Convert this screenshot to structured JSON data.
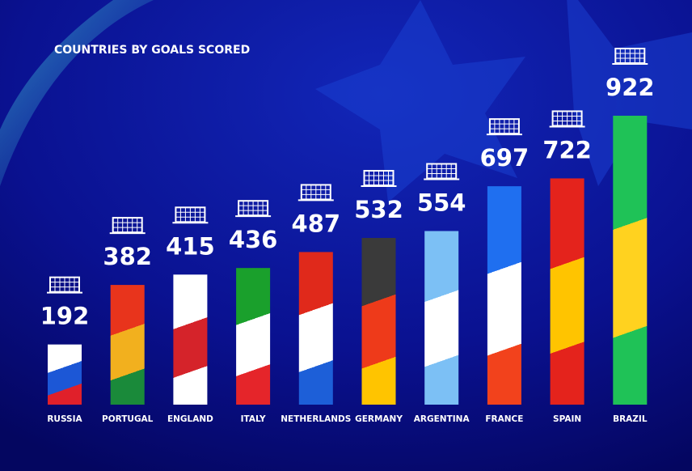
{
  "chart_data": {
    "type": "bar",
    "title": "COUNTRIES BY GOALS SCORED",
    "categories": [
      "RUSSIA",
      "PORTUGAL",
      "ENGLAND",
      "ITALY",
      "NETHERLANDS",
      "GERMANY",
      "ARGENTINA",
      "FRANCE",
      "SPAIN",
      "BRAZIL"
    ],
    "values": [
      192,
      382,
      415,
      436,
      487,
      532,
      554,
      697,
      722,
      922
    ],
    "colors": [
      [
        "#ffffff",
        "#1c57d6",
        "#e0202a"
      ],
      [
        "#e8341c",
        "#f2b01e",
        "#1a8a3a"
      ],
      [
        "#ffffff",
        "#d5232a",
        "#ffffff"
      ],
      [
        "#1aa02c",
        "#ffffff",
        "#e5252a"
      ],
      [
        "#e0291b",
        "#ffffff",
        "#1d5fd8"
      ],
      [
        "#3a3a3a",
        "#ee3a1a",
        "#ffc400"
      ],
      [
        "#7cc0f5",
        "#ffffff",
        "#7cc0f5"
      ],
      [
        "#1f6ff0",
        "#ffffff",
        "#f2421c"
      ],
      [
        "#e4231c",
        "#ffc400",
        "#e4231c"
      ],
      [
        "#1fc257",
        "#ffd21f",
        "#1fc257"
      ]
    ]
  }
}
